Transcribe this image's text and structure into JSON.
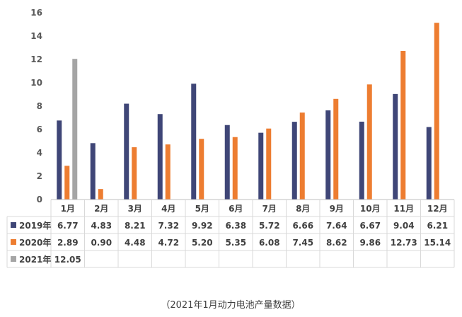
{
  "chart_data": {
    "type": "bar",
    "categories": [
      "1月",
      "2月",
      "3月",
      "4月",
      "5月",
      "6月",
      "7月",
      "8月",
      "9月",
      "10月",
      "11月",
      "12月"
    ],
    "series": [
      {
        "name": "2019年",
        "color": "#3f4677",
        "values": [
          6.77,
          4.83,
          8.21,
          7.32,
          9.92,
          6.38,
          5.72,
          6.66,
          7.64,
          6.67,
          9.04,
          6.21
        ],
        "labels": [
          "6.77",
          "4.83",
          "8.21",
          "7.32",
          "9.92",
          "6.38",
          "5.72",
          "6.66",
          "7.64",
          "6.67",
          "9.04",
          "6.21"
        ]
      },
      {
        "name": "2020年",
        "color": "#ed7d31",
        "values": [
          2.89,
          0.9,
          4.48,
          4.72,
          5.2,
          5.35,
          6.08,
          7.45,
          8.62,
          9.86,
          12.73,
          15.14
        ],
        "labels": [
          "2.89",
          "0.90",
          "4.48",
          "4.72",
          "5.20",
          "5.35",
          "6.08",
          "7.45",
          "8.62",
          "9.86",
          "12.73",
          "15.14"
        ]
      },
      {
        "name": "2021年",
        "color": "#a5a5a5",
        "values": [
          12.05,
          null,
          null,
          null,
          null,
          null,
          null,
          null,
          null,
          null,
          null,
          null
        ],
        "labels": [
          "12.05",
          "",
          "",
          "",
          "",
          "",
          "",
          "",
          "",
          "",
          "",
          ""
        ]
      }
    ],
    "ylim": [
      0,
      16
    ],
    "yticks": [
      "0",
      "2",
      "4",
      "6",
      "8",
      "10",
      "12",
      "14",
      "16"
    ],
    "grid": false,
    "legend": "table-left",
    "caption": "（2021年1月动力电池产量数据）"
  }
}
